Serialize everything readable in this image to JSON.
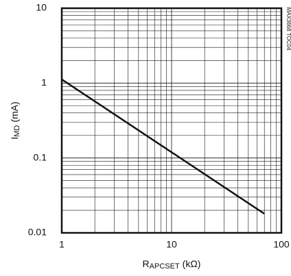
{
  "chart_data": {
    "type": "line",
    "figure_id": "MAX3668 TOC04",
    "xlabel": {
      "symbol": "R",
      "subscript": "APCSET",
      "unit": "(kΩ)"
    },
    "ylabel": {
      "symbol": "I",
      "subscript": "MD",
      "unit": "(mA)"
    },
    "x": [
      1,
      70
    ],
    "series": [
      {
        "color": "#111111",
        "values": [
          1.12,
          0.018
        ]
      }
    ],
    "xlim": [
      1,
      100
    ],
    "ylim": [
      0.01,
      10
    ],
    "xticks": [
      1,
      10,
      100
    ],
    "yticks": [
      0.01,
      0.1,
      1,
      10
    ],
    "xscale": "log",
    "yscale": "log",
    "grid": true,
    "minor_grid": true
  }
}
